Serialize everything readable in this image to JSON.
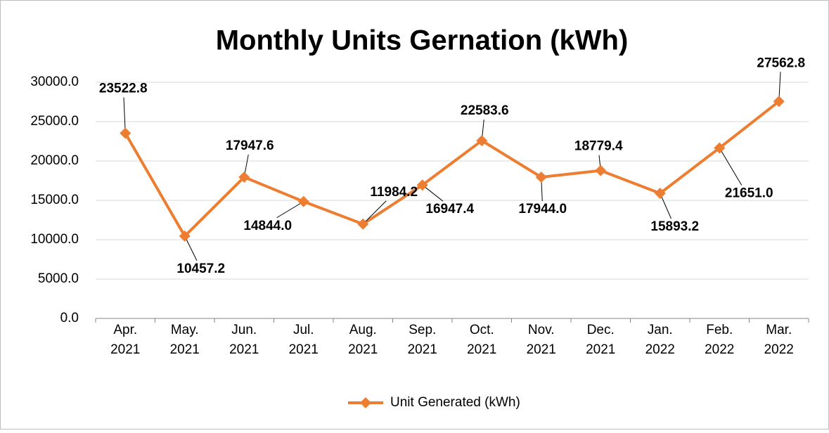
{
  "chart_data": {
    "type": "line",
    "title": "Monthly Units Gernation (kWh)",
    "categories": [
      "Apr. 2021",
      "May. 2021",
      "Jun. 2021",
      "Jul. 2021",
      "Aug. 2021",
      "Sep. 2021",
      "Oct. 2021",
      "Nov. 2021",
      "Dec. 2021",
      "Jan. 2022",
      "Feb. 2022",
      "Mar. 2022"
    ],
    "series": [
      {
        "name": "Unit Generated (kWh)",
        "color": "#ED7D31",
        "values": [
          23522.8,
          10457.2,
          17947.6,
          14844.0,
          11984.2,
          16947.4,
          22583.6,
          17944.0,
          18779.4,
          15893.2,
          21651.0,
          27562.8
        ],
        "value_labels": [
          "23522.8",
          "10457.2",
          "17947.6",
          "14844.0",
          "11984.2",
          "16947.4",
          "22583.6",
          "17944.0",
          "18779.4",
          "15893.2",
          "21651.0",
          "27562.8"
        ]
      }
    ],
    "ylim": [
      0,
      30000
    ],
    "yticks": [
      {
        "value": 0,
        "label": "0.0"
      },
      {
        "value": 5000,
        "label": "5000.0"
      },
      {
        "value": 10000,
        "label": "10000.0"
      },
      {
        "value": 15000,
        "label": "15000.0"
      },
      {
        "value": 20000,
        "label": "20000.0"
      },
      {
        "value": 25000,
        "label": "25000.0"
      },
      {
        "value": 30000,
        "label": "30000.0"
      }
    ],
    "grid": true,
    "legend": "bottom"
  }
}
